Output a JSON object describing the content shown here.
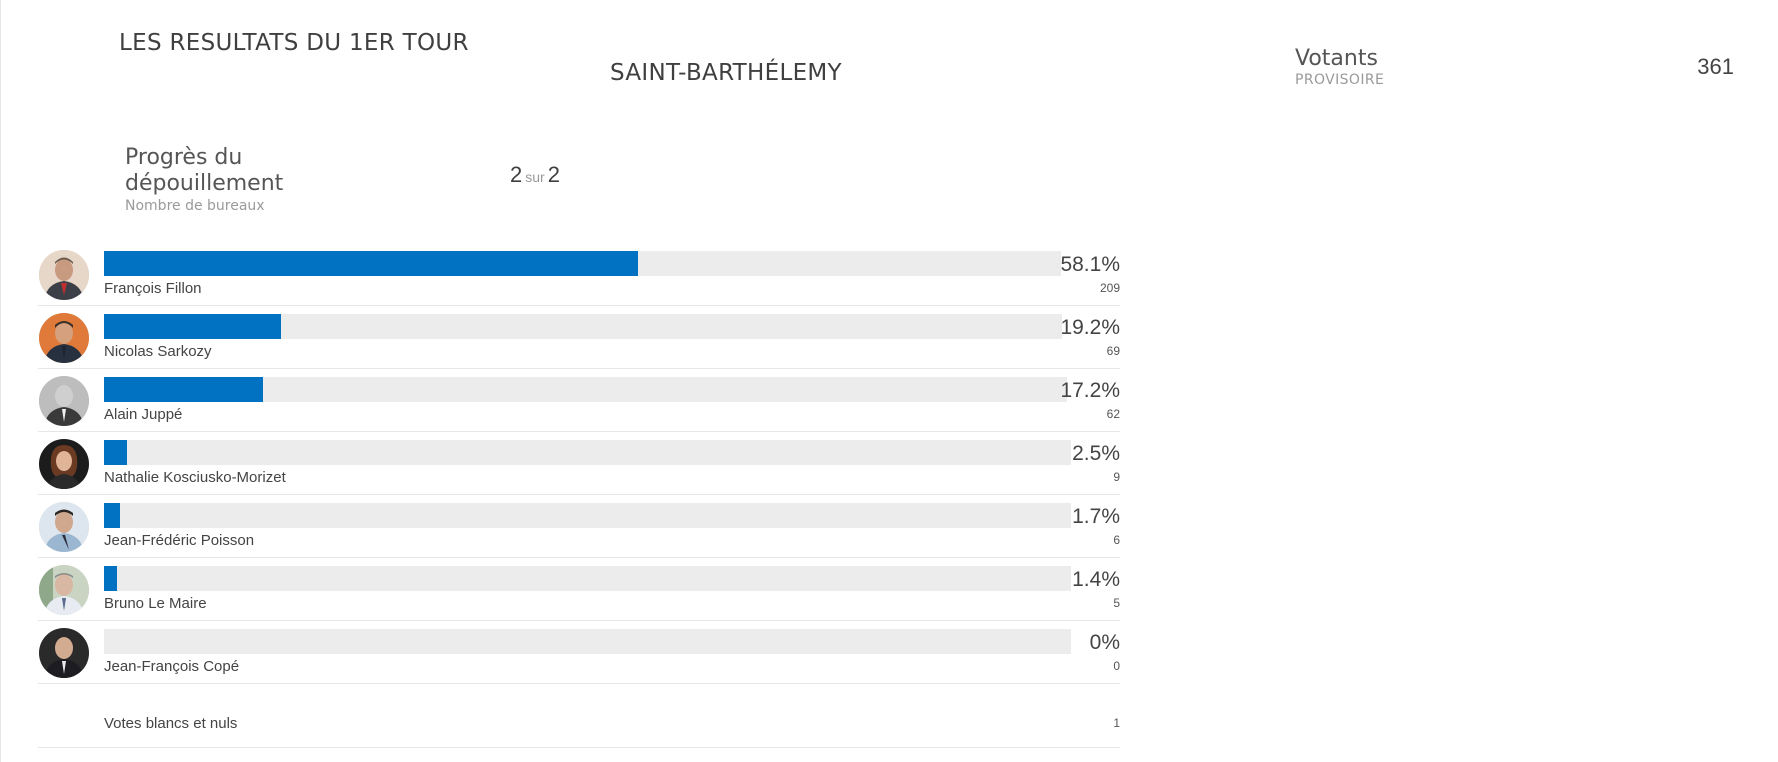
{
  "header": {
    "title": "LES RESULTATS DU 1ER TOUR",
    "subtitle": "SAINT-BARTHÉLEMY"
  },
  "voters": {
    "label": "Votants",
    "status": "PROVISOIRE",
    "value": "361"
  },
  "progress": {
    "label": "Progrès du dépouillement",
    "sublabel": "Nombre de bureaux",
    "done": "2",
    "sep": "sur",
    "total": "2"
  },
  "colors": {
    "bar": "#0072c1",
    "track": "#ececec"
  },
  "candidates": [
    {
      "name": "François Fillon",
      "pct": "58.1%",
      "votes": "209",
      "share": 0.581
    },
    {
      "name": "Nicolas Sarkozy",
      "pct": "19.2%",
      "votes": "69",
      "share": 0.192
    },
    {
      "name": "Alain Juppé",
      "pct": "17.2%",
      "votes": "62",
      "share": 0.172
    },
    {
      "name": "Nathalie Kosciusko-Morizet",
      "pct": "2.5%",
      "votes": "9",
      "share": 0.025
    },
    {
      "name": "Jean-Frédéric Poisson",
      "pct": "1.7%",
      "votes": "6",
      "share": 0.017
    },
    {
      "name": "Bruno Le Maire",
      "pct": "1.4%",
      "votes": "5",
      "share": 0.014
    },
    {
      "name": "Jean-François Copé",
      "pct": "0%",
      "votes": "0",
      "share": 0
    }
  ],
  "blank": {
    "label": "Votes blancs et nuls",
    "votes": "1"
  }
}
